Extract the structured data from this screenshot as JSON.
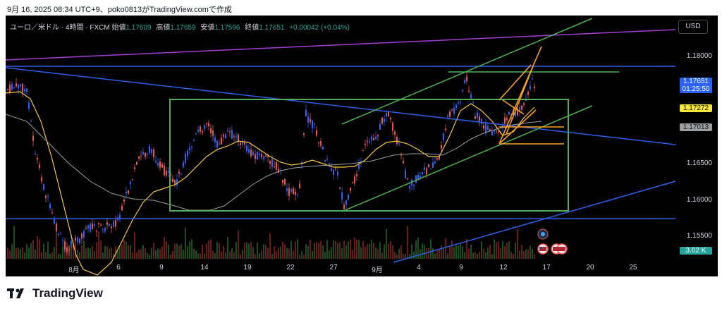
{
  "caption": "9月 16, 2025 08:34 UTC+9、poko0813がTradingView.comで作成",
  "symbol": {
    "name": "ユーロ／米ドル · 4時間 · FXCM",
    "open_label": "始値",
    "open": "1.17609",
    "high_label": "高値",
    "high": "1.17659",
    "low_label": "安値",
    "low": "1.17596",
    "close_label": "終値",
    "close": "1.17651",
    "change": "+0.00042 (+0.04%)"
  },
  "currency_button": "USD",
  "price_axis": [
    "1.18000",
    "1.16500",
    "1.16000",
    "1.15500"
  ],
  "badges": {
    "last_price": "1.17651",
    "countdown": "01:25:50",
    "ma_yellow": "1.17272",
    "ma_gray": "1.17013",
    "volume": "3.02 K"
  },
  "date_axis": [
    "8月",
    "6",
    "9",
    "14",
    "19",
    "22",
    "27",
    "9月",
    "4",
    "9",
    "12",
    "17",
    "20",
    "25"
  ],
  "colors": {
    "bull": "#2962ff",
    "bear": "#ef5350",
    "ma_yellow": "#f7c73a",
    "ma_gray": "#9e9e9e",
    "trend_blue": "#2f5ee8",
    "channel_green": "#4caf50",
    "magenta": "#a33ecf",
    "fib_orange": "#f7a21b"
  },
  "brand": "TradingView"
}
